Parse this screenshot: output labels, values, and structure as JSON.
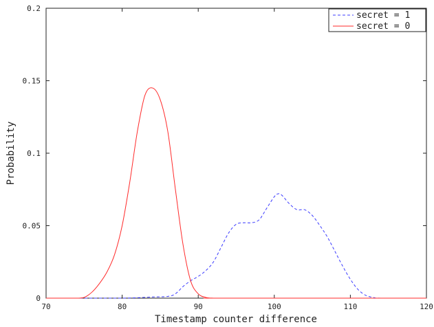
{
  "chart_data": {
    "type": "line",
    "title": "",
    "xlabel": "Timestamp counter difference",
    "ylabel": "Probability",
    "xlim": [
      70,
      120
    ],
    "ylim": [
      0,
      0.2
    ],
    "x_ticks": [
      70,
      80,
      90,
      100,
      110,
      120
    ],
    "x_tick_labels": [
      "70",
      "80",
      "90",
      "100",
      "110",
      "120"
    ],
    "y_ticks": [
      0,
      0.05,
      0.1,
      0.15,
      0.2
    ],
    "y_tick_labels": [
      "0",
      "0.05",
      "0.1",
      "0.15",
      "0.2"
    ],
    "grid": false,
    "legend_position": "top-right",
    "series": [
      {
        "name": "secret = 1",
        "color": "#3b3bff",
        "dash": "dashed",
        "x": [
          70,
          75,
          80,
          82,
          84,
          86,
          87,
          88,
          89,
          90,
          91,
          92,
          93,
          94,
          95,
          96,
          97,
          98,
          99,
          100,
          100.5,
          101,
          102,
          103,
          104,
          105,
          106,
          107,
          108,
          109,
          110,
          111,
          112,
          113,
          114,
          120
        ],
        "y": [
          0,
          0,
          0,
          0.0003,
          0.0008,
          0.0012,
          0.003,
          0.008,
          0.012,
          0.015,
          0.019,
          0.025,
          0.035,
          0.045,
          0.051,
          0.052,
          0.052,
          0.054,
          0.062,
          0.07,
          0.072,
          0.071,
          0.065,
          0.061,
          0.061,
          0.057,
          0.05,
          0.042,
          0.032,
          0.022,
          0.013,
          0.006,
          0.002,
          0.0005,
          0,
          0
        ]
      },
      {
        "name": "secret = 0",
        "color": "#ff2a2a",
        "dash": "solid",
        "x": [
          70,
          74,
          75,
          76,
          77,
          78,
          79,
          80,
          81,
          82,
          83,
          84,
          85,
          86,
          87,
          88,
          89,
          90,
          91,
          92,
          93,
          120
        ],
        "y": [
          0,
          0,
          0.0005,
          0.004,
          0.01,
          0.018,
          0.03,
          0.05,
          0.08,
          0.115,
          0.14,
          0.145,
          0.137,
          0.115,
          0.075,
          0.037,
          0.012,
          0.003,
          0.0005,
          0,
          0,
          0
        ]
      }
    ]
  }
}
